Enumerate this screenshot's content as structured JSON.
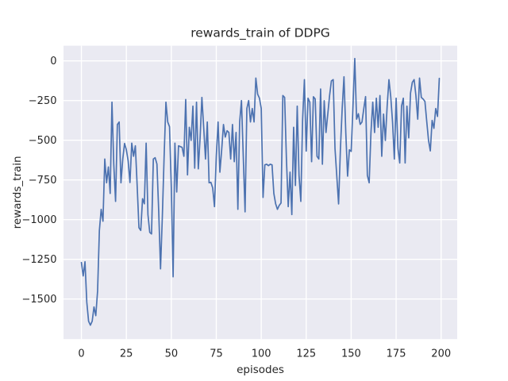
{
  "chart_data": {
    "type": "line",
    "title": "rewards_train of DDPG",
    "xlabel": "episodes",
    "ylabel": "rewards_train",
    "grid": true,
    "legend": false,
    "background_color": "#eaeaf2",
    "gridline_color": "#ffffff",
    "line_color": "#4c72b0",
    "text_color": "#262626",
    "xlim": [
      -9.95,
      208.95
    ],
    "ylim": [
      -1752.5,
      95.5
    ],
    "x_ticks": [
      {
        "value": 0,
        "label": "0"
      },
      {
        "value": 25,
        "label": "25"
      },
      {
        "value": 50,
        "label": "50"
      },
      {
        "value": 75,
        "label": "75"
      },
      {
        "value": 100,
        "label": "100"
      },
      {
        "value": 125,
        "label": "125"
      },
      {
        "value": 150,
        "label": "150"
      },
      {
        "value": 175,
        "label": "175"
      },
      {
        "value": 200,
        "label": "200"
      }
    ],
    "y_ticks": [
      {
        "value": 0,
        "label": "0"
      },
      {
        "value": -250,
        "label": "−250"
      },
      {
        "value": -500,
        "label": "−500"
      },
      {
        "value": -750,
        "label": "−750"
      },
      {
        "value": -1000,
        "label": "−1000"
      },
      {
        "value": -1250,
        "label": "−1250"
      },
      {
        "value": -1500,
        "label": "−1500"
      }
    ],
    "series": [
      {
        "name": "rewards_train",
        "x_start": 0,
        "x_step": 1,
        "values": [
          -1270,
          -1355,
          -1265,
          -1520,
          -1640,
          -1665,
          -1640,
          -1550,
          -1605,
          -1450,
          -1068,
          -935,
          -1010,
          -618,
          -768,
          -668,
          -835,
          -260,
          -651,
          -885,
          -401,
          -385,
          -768,
          -618,
          -520,
          -560,
          -630,
          -766,
          -518,
          -601,
          -535,
          -785,
          -1051,
          -1068,
          -868,
          -900,
          -518,
          -968,
          -1080,
          -1090,
          -618,
          -610,
          -650,
          -950,
          -1310,
          -983,
          -600,
          -260,
          -385,
          -415,
          -800,
          -1360,
          -518,
          -826,
          -535,
          -540,
          -545,
          -601,
          -243,
          -718,
          -418,
          -501,
          -285,
          -676,
          -260,
          -680,
          -485,
          -230,
          -420,
          -618,
          -385,
          -768,
          -765,
          -800,
          -918,
          -601,
          -385,
          -701,
          -560,
          -401,
          -480,
          -440,
          -451,
          -618,
          -401,
          -635,
          -451,
          -935,
          -385,
          -250,
          -600,
          -951,
          -300,
          -250,
          -385,
          -300,
          -385,
          -108,
          -210,
          -235,
          -300,
          -860,
          -655,
          -651,
          -660,
          -651,
          -655,
          -835,
          -900,
          -935,
          -910,
          -895,
          -218,
          -230,
          -618,
          -918,
          -701,
          -968,
          -418,
          -785,
          -285,
          -721,
          -885,
          -368,
          -118,
          -568,
          -235,
          -260,
          -635,
          -226,
          -240,
          -601,
          -618,
          -177,
          -651,
          -251,
          -451,
          -335,
          -218,
          -126,
          -118,
          -551,
          -726,
          -901,
          -560,
          -300,
          -100,
          -451,
          -726,
          -560,
          -570,
          -285,
          15,
          -367,
          -333,
          -400,
          -385,
          -302,
          -225,
          -721,
          -768,
          -451,
          -260,
          -451,
          -235,
          -418,
          -218,
          -601,
          -335,
          -501,
          -285,
          -118,
          -226,
          -385,
          -618,
          -235,
          -551,
          -643,
          -285,
          -235,
          -643,
          -285,
          -485,
          -202,
          -135,
          -118,
          -220,
          -367,
          -108,
          -230,
          -240,
          -255,
          -380,
          -500,
          -567,
          -375,
          -425,
          -300,
          -350,
          -110
        ]
      }
    ]
  }
}
